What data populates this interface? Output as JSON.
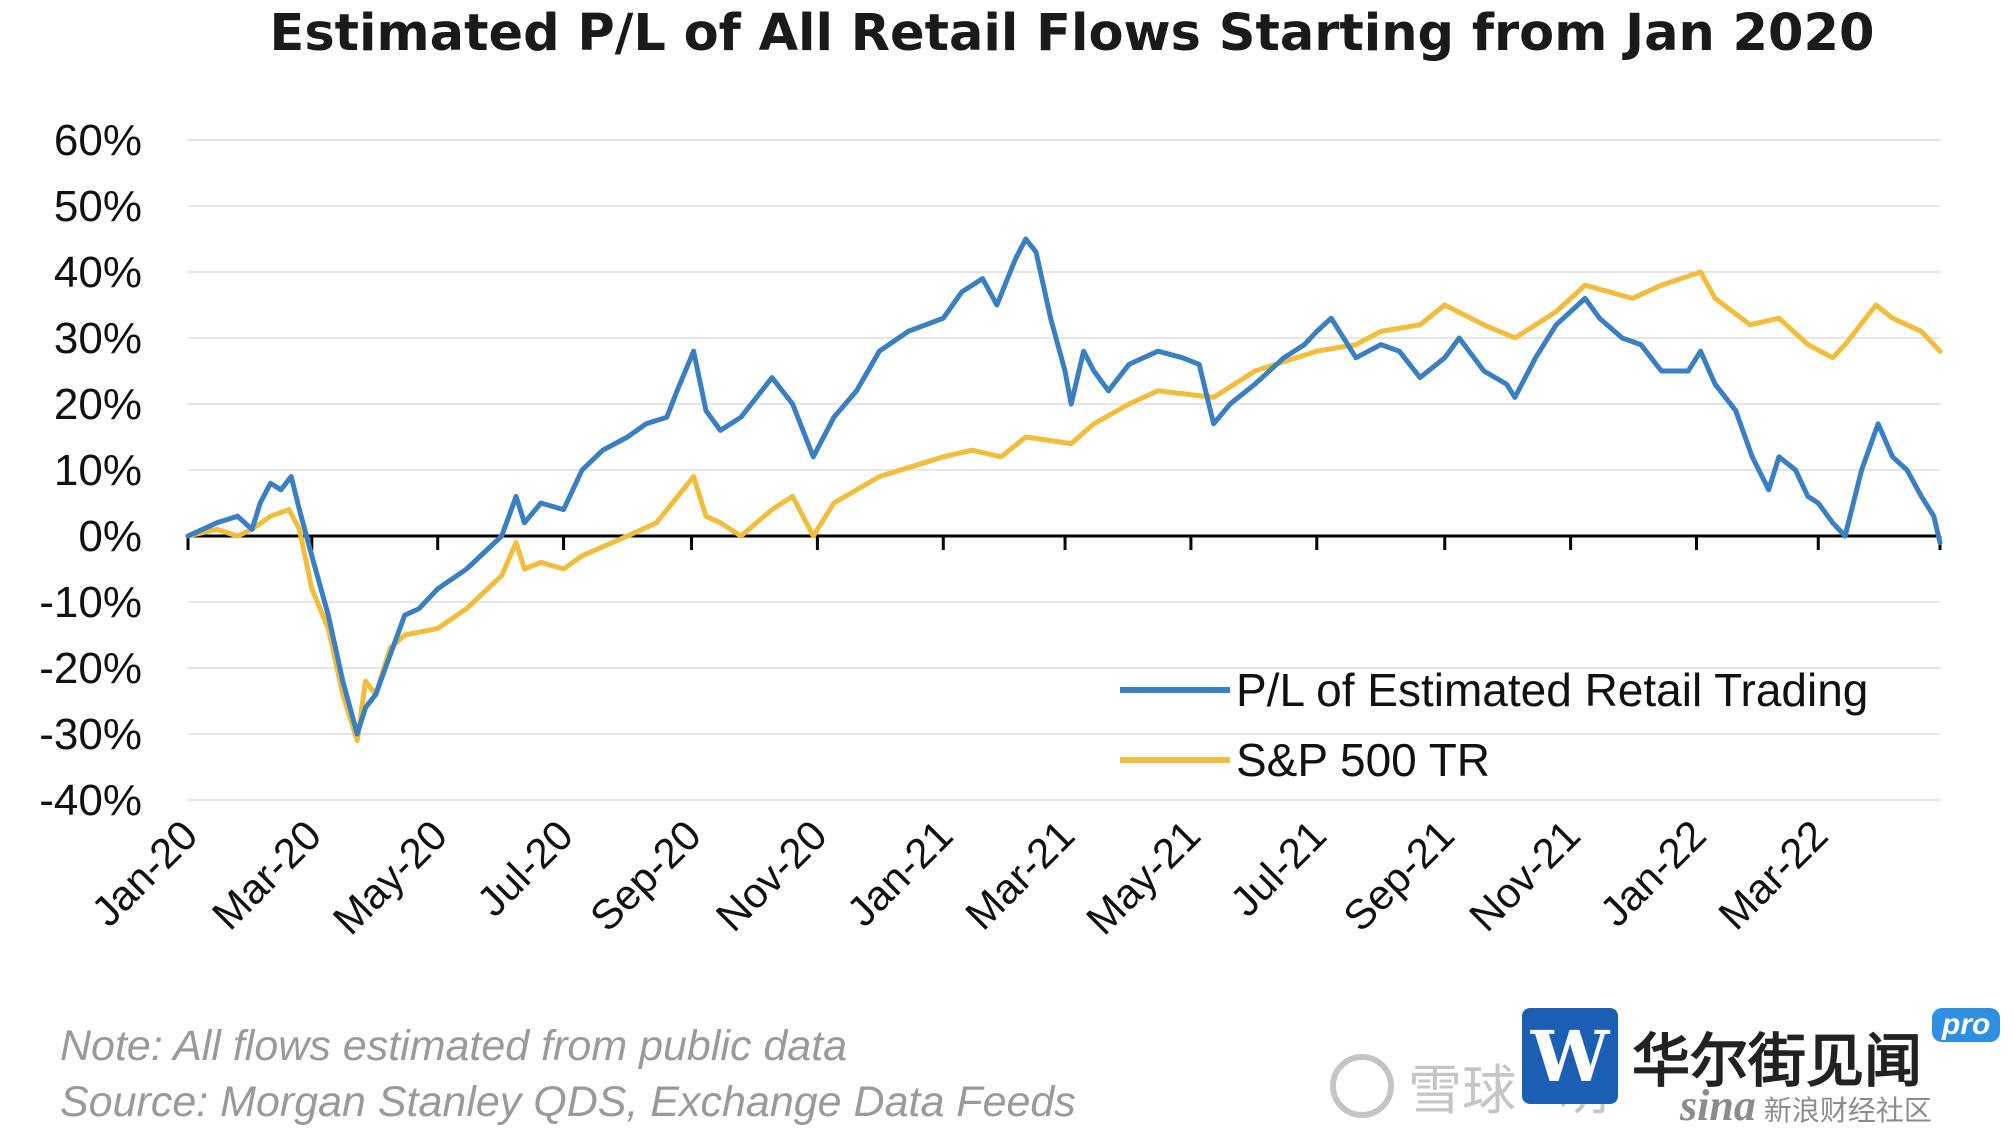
{
  "chart_data": {
    "type": "line",
    "title": "Estimated P/L of All Retail Flows Starting from Jan 2020",
    "xlabel": "",
    "ylabel": "",
    "x_tick_labels": [
      "Jan-20",
      "Mar-20",
      "May-20",
      "Jul-20",
      "Sep-20",
      "Nov-20",
      "Jan-21",
      "Mar-21",
      "May-21",
      "Jul-21",
      "Sep-21",
      "Nov-21",
      "Jan-22",
      "Mar-22"
    ],
    "x_tick_dates": [
      "2020-01-01",
      "2020-03-01",
      "2020-05-01",
      "2020-07-01",
      "2020-09-01",
      "2020-11-01",
      "2021-01-01",
      "2021-03-01",
      "2021-05-01",
      "2021-07-01",
      "2021-09-01",
      "2021-11-01",
      "2022-01-01",
      "2022-03-01"
    ],
    "xlim": [
      "2020-01-01",
      "2022-04-29"
    ],
    "y_tick_labels": [
      "60%",
      "50%",
      "40%",
      "30%",
      "20%",
      "10%",
      "0%",
      "-10%",
      "-20%",
      "-30%",
      "-40%"
    ],
    "y_ticks": [
      60,
      50,
      40,
      30,
      20,
      10,
      0,
      -10,
      -20,
      -30,
      -40
    ],
    "ylim": [
      -40,
      60
    ],
    "y_unit": "%",
    "grid": "horizontal",
    "legend_position": "bottom-right",
    "series": [
      {
        "name": "P/L of Estimated Retail Trading",
        "color": "#3a7fc1",
        "points": [
          [
            "2020-01-01",
            0
          ],
          [
            "2020-01-15",
            2
          ],
          [
            "2020-01-25",
            3
          ],
          [
            "2020-02-01",
            1
          ],
          [
            "2020-02-05",
            5
          ],
          [
            "2020-02-10",
            8
          ],
          [
            "2020-02-15",
            7
          ],
          [
            "2020-02-20",
            9
          ],
          [
            "2020-02-24",
            4
          ],
          [
            "2020-03-01",
            -3
          ],
          [
            "2020-03-09",
            -12
          ],
          [
            "2020-03-16",
            -22
          ],
          [
            "2020-03-23",
            -30
          ],
          [
            "2020-03-27",
            -26
          ],
          [
            "2020-04-01",
            -24
          ],
          [
            "2020-04-08",
            -18
          ],
          [
            "2020-04-15",
            -12
          ],
          [
            "2020-04-22",
            -11
          ],
          [
            "2020-05-01",
            -8
          ],
          [
            "2020-05-15",
            -5
          ],
          [
            "2020-06-01",
            0
          ],
          [
            "2020-06-08",
            6
          ],
          [
            "2020-06-12",
            2
          ],
          [
            "2020-06-20",
            5
          ],
          [
            "2020-07-01",
            4
          ],
          [
            "2020-07-10",
            10
          ],
          [
            "2020-07-20",
            13
          ],
          [
            "2020-08-01",
            15
          ],
          [
            "2020-08-10",
            17
          ],
          [
            "2020-08-20",
            18
          ],
          [
            "2020-08-25",
            22
          ],
          [
            "2020-09-02",
            28
          ],
          [
            "2020-09-08",
            19
          ],
          [
            "2020-09-15",
            16
          ],
          [
            "2020-09-25",
            18
          ],
          [
            "2020-10-10",
            24
          ],
          [
            "2020-10-20",
            20
          ],
          [
            "2020-10-30",
            12
          ],
          [
            "2020-11-09",
            18
          ],
          [
            "2020-11-20",
            22
          ],
          [
            "2020-12-01",
            28
          ],
          [
            "2020-12-15",
            31
          ],
          [
            "2021-01-01",
            33
          ],
          [
            "2021-01-10",
            37
          ],
          [
            "2021-01-20",
            39
          ],
          [
            "2021-01-27",
            35
          ],
          [
            "2021-02-05",
            42
          ],
          [
            "2021-02-10",
            45
          ],
          [
            "2021-02-15",
            43
          ],
          [
            "2021-02-22",
            33
          ],
          [
            "2021-03-01",
            25
          ],
          [
            "2021-03-04",
            20
          ],
          [
            "2021-03-10",
            28
          ],
          [
            "2021-03-15",
            25
          ],
          [
            "2021-03-22",
            22
          ],
          [
            "2021-04-01",
            26
          ],
          [
            "2021-04-15",
            28
          ],
          [
            "2021-04-27",
            27
          ],
          [
            "2021-05-05",
            26
          ],
          [
            "2021-05-12",
            17
          ],
          [
            "2021-05-20",
            20
          ],
          [
            "2021-06-01",
            23
          ],
          [
            "2021-06-15",
            27
          ],
          [
            "2021-06-25",
            29
          ],
          [
            "2021-07-01",
            31
          ],
          [
            "2021-07-08",
            33
          ],
          [
            "2021-07-20",
            27
          ],
          [
            "2021-08-01",
            29
          ],
          [
            "2021-08-10",
            28
          ],
          [
            "2021-08-20",
            24
          ],
          [
            "2021-09-01",
            27
          ],
          [
            "2021-09-08",
            30
          ],
          [
            "2021-09-20",
            25
          ],
          [
            "2021-10-01",
            23
          ],
          [
            "2021-10-05",
            21
          ],
          [
            "2021-10-15",
            27
          ],
          [
            "2021-10-25",
            32
          ],
          [
            "2021-11-01",
            34
          ],
          [
            "2021-11-08",
            36
          ],
          [
            "2021-11-15",
            33
          ],
          [
            "2021-11-26",
            30
          ],
          [
            "2021-12-05",
            29
          ],
          [
            "2021-12-15",
            25
          ],
          [
            "2021-12-28",
            25
          ],
          [
            "2022-01-03",
            28
          ],
          [
            "2022-01-10",
            23
          ],
          [
            "2022-01-20",
            19
          ],
          [
            "2022-01-28",
            12
          ],
          [
            "2022-02-05",
            7
          ],
          [
            "2022-02-10",
            12
          ],
          [
            "2022-02-18",
            10
          ],
          [
            "2022-02-24",
            6
          ],
          [
            "2022-03-01",
            5
          ],
          [
            "2022-03-08",
            2
          ],
          [
            "2022-03-14",
            0
          ],
          [
            "2022-03-22",
            10
          ],
          [
            "2022-03-30",
            17
          ],
          [
            "2022-04-06",
            12
          ],
          [
            "2022-04-13",
            10
          ],
          [
            "2022-04-20",
            6
          ],
          [
            "2022-04-26",
            3
          ],
          [
            "2022-04-29",
            -1
          ]
        ]
      },
      {
        "name": "S&P 500 TR",
        "color": "#f2bc3d",
        "points": [
          [
            "2020-01-01",
            0
          ],
          [
            "2020-01-15",
            1
          ],
          [
            "2020-01-25",
            0
          ],
          [
            "2020-02-01",
            1
          ],
          [
            "2020-02-10",
            3
          ],
          [
            "2020-02-19",
            4
          ],
          [
            "2020-02-24",
            1
          ],
          [
            "2020-03-01",
            -8
          ],
          [
            "2020-03-09",
            -14
          ],
          [
            "2020-03-16",
            -24
          ],
          [
            "2020-03-23",
            -31
          ],
          [
            "2020-03-27",
            -22
          ],
          [
            "2020-04-01",
            -24
          ],
          [
            "2020-04-08",
            -17
          ],
          [
            "2020-04-15",
            -15
          ],
          [
            "2020-05-01",
            -14
          ],
          [
            "2020-05-15",
            -11
          ],
          [
            "2020-06-01",
            -6
          ],
          [
            "2020-06-08",
            -1
          ],
          [
            "2020-06-12",
            -5
          ],
          [
            "2020-06-20",
            -4
          ],
          [
            "2020-07-01",
            -5
          ],
          [
            "2020-07-10",
            -3
          ],
          [
            "2020-08-01",
            0
          ],
          [
            "2020-08-15",
            2
          ],
          [
            "2020-09-02",
            9
          ],
          [
            "2020-09-08",
            3
          ],
          [
            "2020-09-15",
            2
          ],
          [
            "2020-09-25",
            0
          ],
          [
            "2020-10-10",
            4
          ],
          [
            "2020-10-20",
            6
          ],
          [
            "2020-10-30",
            0
          ],
          [
            "2020-11-09",
            5
          ],
          [
            "2020-11-20",
            7
          ],
          [
            "2020-12-01",
            9
          ],
          [
            "2021-01-01",
            12
          ],
          [
            "2021-01-15",
            13
          ],
          [
            "2021-01-29",
            12
          ],
          [
            "2021-02-10",
            15
          ],
          [
            "2021-03-04",
            14
          ],
          [
            "2021-03-15",
            17
          ],
          [
            "2021-04-01",
            20
          ],
          [
            "2021-04-15",
            22
          ],
          [
            "2021-05-12",
            21
          ],
          [
            "2021-06-01",
            25
          ],
          [
            "2021-07-01",
            28
          ],
          [
            "2021-07-20",
            29
          ],
          [
            "2021-08-01",
            31
          ],
          [
            "2021-08-20",
            32
          ],
          [
            "2021-09-01",
            35
          ],
          [
            "2021-09-20",
            32
          ],
          [
            "2021-10-05",
            30
          ],
          [
            "2021-10-25",
            34
          ],
          [
            "2021-11-08",
            38
          ],
          [
            "2021-12-01",
            36
          ],
          [
            "2021-12-15",
            38
          ],
          [
            "2022-01-03",
            40
          ],
          [
            "2022-01-10",
            36
          ],
          [
            "2022-01-27",
            32
          ],
          [
            "2022-02-10",
            33
          ],
          [
            "2022-02-24",
            29
          ],
          [
            "2022-03-08",
            27
          ],
          [
            "2022-03-14",
            29
          ],
          [
            "2022-03-29",
            35
          ],
          [
            "2022-04-06",
            33
          ],
          [
            "2022-04-20",
            31
          ],
          [
            "2022-04-29",
            28
          ]
        ]
      }
    ]
  },
  "notes": {
    "note": "Note:  All flows estimated from public data",
    "source": "Source: Morgan Stanley QDS, Exchange Data Feeds"
  },
  "watermarks": {
    "xueqiu": "雪球",
    "meng": "萌",
    "wallstreet_logo": "W",
    "wallstreet": "华尔街见闻",
    "pro": "pro",
    "sina": "sina",
    "sina_cn": "新浪财经社区"
  }
}
